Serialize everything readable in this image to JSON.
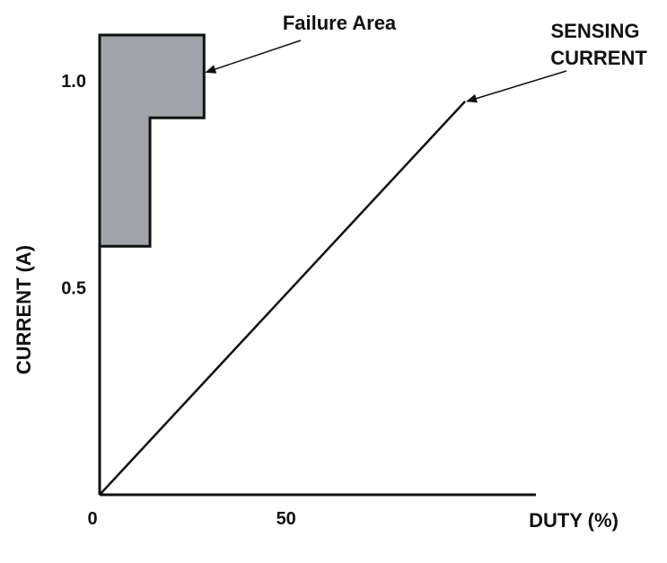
{
  "chart_data": {
    "type": "line",
    "xlabel": "DUTY (%)",
    "ylabel": "CURRENT (A)",
    "x_ticks": [
      {
        "value": 0,
        "label": "0"
      },
      {
        "value": 50,
        "label": "50"
      }
    ],
    "y_ticks": [
      {
        "value": 0.5,
        "label": "0.5"
      },
      {
        "value": 1.0,
        "label": "1.0"
      }
    ],
    "xlim": [
      0,
      117
    ],
    "ylim": [
      0,
      1.16
    ],
    "grid": false,
    "series": [
      {
        "name": "SENSING CURRENT",
        "x": [
          0,
          98
        ],
        "y": [
          0,
          0.95
        ],
        "color": "#111111"
      }
    ],
    "regions": [
      {
        "name": "Failure Area",
        "color": "#a0a4aa",
        "points": [
          [
            0,
            1.11
          ],
          [
            28,
            1.11
          ],
          [
            28,
            0.91
          ],
          [
            13.5,
            0.91
          ],
          [
            13.5,
            0.6
          ],
          [
            0,
            0.6
          ]
        ]
      }
    ],
    "annotations": [
      {
        "text": "Failure Area",
        "target": "region",
        "point": [
          28,
          1.02
        ]
      },
      {
        "text_lines": [
          "SENSING",
          "CURRENT"
        ],
        "target": "series",
        "point": [
          98,
          0.95
        ]
      }
    ]
  }
}
